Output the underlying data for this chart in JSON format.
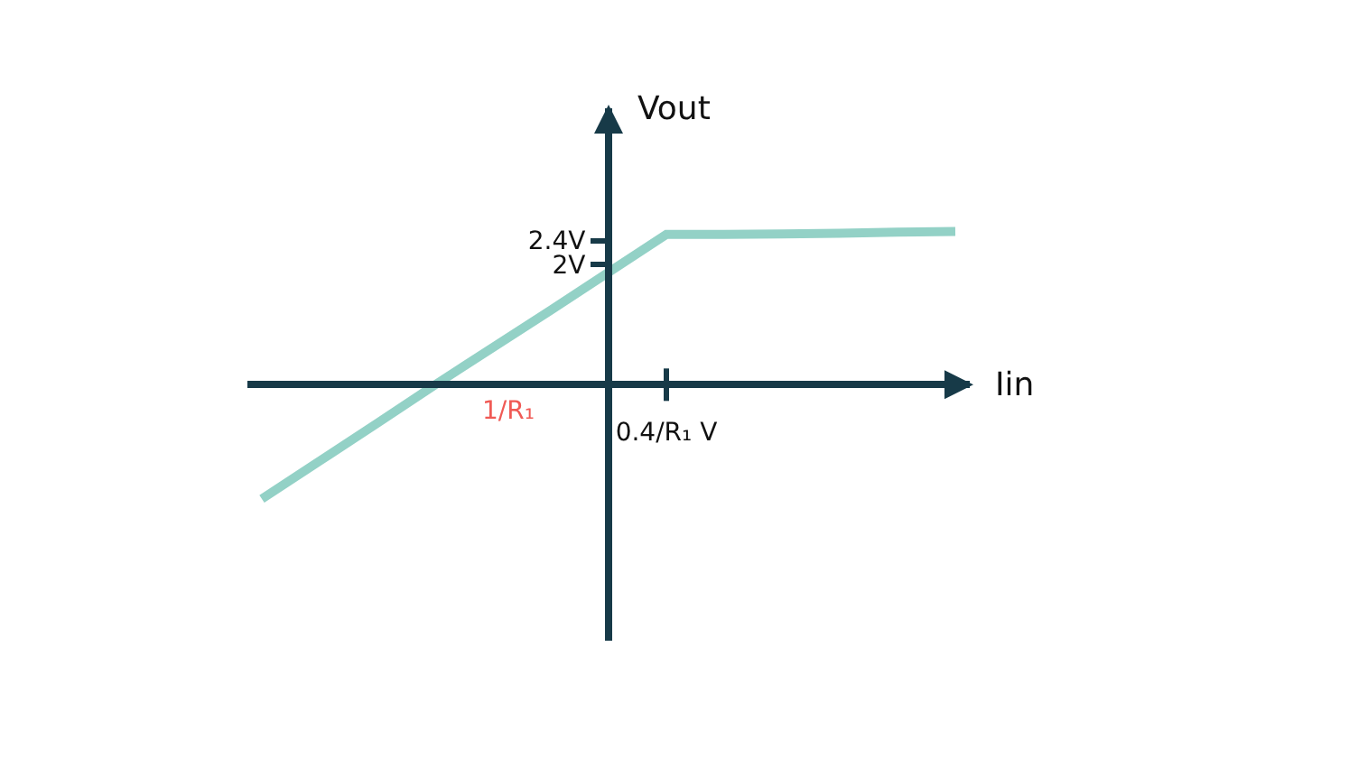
{
  "chart_data": {
    "type": "line",
    "xlabel": "Iin",
    "ylabel": "Vout",
    "categories": [
      null,
      null,
      null,
      null,
      null,
      null,
      null,
      "0.4/R₁ V",
      null,
      null,
      null,
      null,
      null
    ],
    "series": [
      {
        "color": "#93d1c6",
        "values": [
          -1.9,
          -1.27,
          -0.64,
          0,
          0.62,
          1.24,
          1.87,
          2.5,
          2.5,
          2.51,
          2.52,
          2.54,
          2.55
        ]
      }
    ],
    "ylim": [
      -4.26,
      4.6
    ],
    "yticks": [
      {
        "value": 2.4,
        "label": "2.4V"
      },
      {
        "value": 2,
        "label": "2V"
      }
    ],
    "annotations": [
      "1/R₁"
    ],
    "grid": false,
    "legend": false,
    "marker": "none",
    "line_style": "solid"
  }
}
